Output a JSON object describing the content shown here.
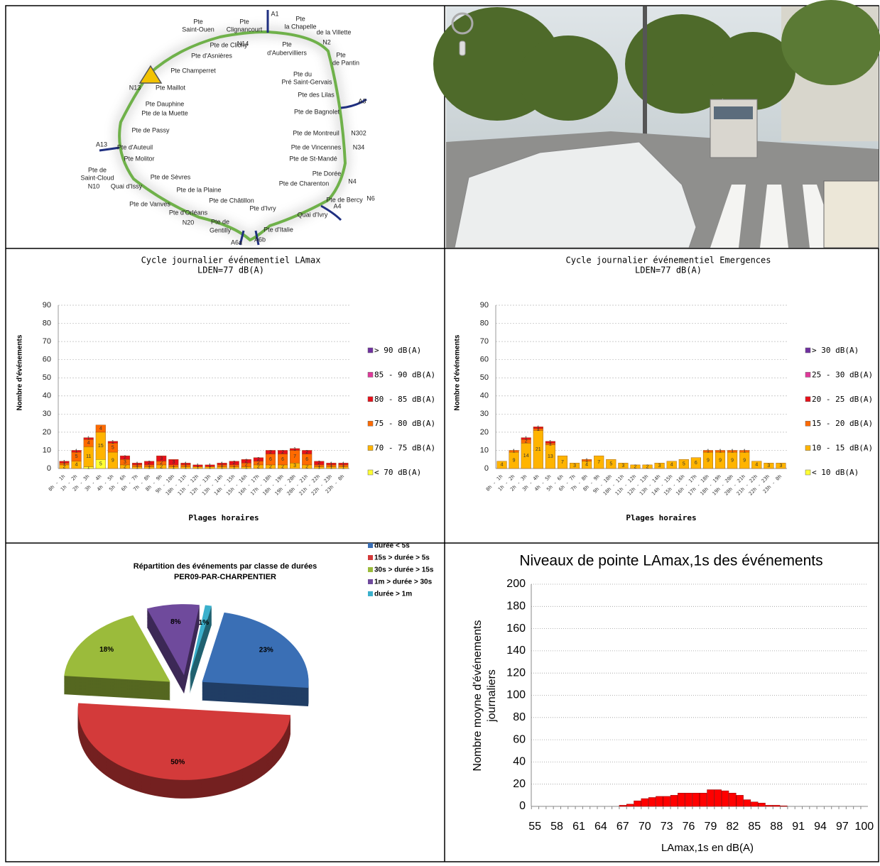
{
  "map": {
    "labels": [
      "Pte",
      "Saint-Ouen",
      "Pte",
      "Clignancourt",
      "A1",
      "Pte",
      "la Chapelle",
      "de la Villette",
      "N14",
      "Pte de Clichy",
      "Pte d'Asnières",
      "N2",
      "Pte",
      "d'Aubervilliers",
      "Pte",
      "de Pantin",
      "Pte Champerret",
      "Pte du",
      "Pré Saint-Gervais",
      "N13",
      "Pte Maillot",
      "Pte des Lilas",
      "A3",
      "Pte Dauphine",
      "Pte de la Muette",
      "Pte de Bagnolet",
      "Pte de Passy",
      "Pte de Montreuil",
      "N302",
      "A13",
      "Pte d'Auteuil",
      "Pte de Vincennes",
      "N34",
      "Pte Molitor",
      "Pte de St-Mandé",
      "Pte de",
      "Saint-Cloud",
      "Pte de Sèvres",
      "Pte Dorée",
      "N10",
      "Quai d'Issy",
      "Pte de Charenton",
      "N4",
      "Pte de la Plaine",
      "Pte de Châtillon",
      "Pte de Bercy",
      "N6",
      "A4",
      "Pte de Vanves",
      "Pte d'Ivry",
      "Pte d'Orléans",
      "Quai d'Ivry",
      "N20",
      "Pte de",
      "Gentilly",
      "Pte d'Italie",
      "A6a",
      "A6b"
    ]
  },
  "chart_data": [
    {
      "type": "stacked_bar",
      "title": "Cycle journalier événementiel LAmax",
      "subtitle": "LDEN=77 dB(A)",
      "ylabel": "Nombre d'événements",
      "xlabel": "Plages horaires",
      "categories": [
        "0h - 1h",
        "1h - 2h",
        "2h - 3h",
        "3h - 4h",
        "4h - 5h",
        "5h - 6h",
        "6h - 7h",
        "7h - 8h",
        "8h - 9h",
        "9h - 10h",
        "10h - 11h",
        "11h - 12h",
        "12h - 13h",
        "13h - 14h",
        "14h - 15h",
        "15h - 16h",
        "16h - 17h",
        "17h - 18h",
        "18h - 19h",
        "19h - 20h",
        "20h - 21h",
        "21h - 22h",
        "22h - 23h",
        "23h - 0h"
      ],
      "series": [
        {
          "name": "< 70 dB(A)",
          "color": "#ffff33",
          "values": [
            0,
            0,
            1,
            5,
            0,
            0,
            0,
            0,
            0,
            0,
            0,
            0,
            0,
            0,
            0,
            0,
            0,
            0,
            0,
            0,
            0,
            0,
            0,
            0
          ]
        },
        {
          "name": "70 - 75 dB(A)",
          "color": "#ffb400",
          "values": [
            2,
            4,
            11,
            15,
            9,
            2,
            1,
            1,
            2,
            1,
            1,
            1,
            1,
            1,
            1,
            1,
            2,
            2,
            2,
            3,
            2,
            1,
            1,
            1
          ]
        },
        {
          "name": "75 - 80 dB(A)",
          "color": "#ff6a00",
          "values": [
            1,
            5,
            4,
            4,
            5,
            3,
            1,
            1,
            2,
            1,
            1,
            0,
            0,
            1,
            1,
            2,
            2,
            6,
            6,
            7,
            6,
            1,
            1,
            1
          ]
        },
        {
          "name": "80 - 85 dB(A)",
          "color": "#e8101a",
          "values": [
            1,
            1,
            1,
            0,
            1,
            2,
            1,
            2,
            3,
            3,
            1,
            1,
            1,
            1,
            2,
            2,
            2,
            2,
            2,
            1,
            2,
            2,
            1,
            1
          ]
        },
        {
          "name": "85 - 90 dB(A)",
          "color": "#e0389a",
          "values": [
            0,
            0,
            0,
            0,
            0,
            0,
            0,
            0,
            0,
            0,
            0,
            0,
            0,
            0,
            0,
            0,
            0,
            0,
            0,
            0,
            0,
            0,
            0,
            0
          ]
        },
        {
          "name": "> 90 dB(A)",
          "color": "#7030a0",
          "values": [
            0,
            0,
            0,
            0,
            0,
            0,
            0,
            0,
            0,
            0,
            0,
            0,
            0,
            0,
            0,
            0,
            0,
            0,
            0,
            0,
            0,
            0,
            0,
            0
          ]
        }
      ],
      "ylim": [
        0,
        90
      ],
      "yticks": [
        0,
        10,
        20,
        30,
        40,
        50,
        60,
        70,
        80,
        90
      ],
      "grid": true
    },
    {
      "type": "stacked_bar",
      "title": "Cycle journalier événementiel Emergences",
      "subtitle": "LDEN=77 dB(A)",
      "ylabel": "Nombre d'événements",
      "xlabel": "Plages horaires",
      "categories": [
        "0h - 1h",
        "1h - 2h",
        "2h - 3h",
        "3h - 4h",
        "4h - 5h",
        "5h - 6h",
        "6h - 7h",
        "7h - 8h",
        "8h - 9h",
        "9h - 10h",
        "10h - 11h",
        "11h - 12h",
        "12h - 13h",
        "13h - 14h",
        "14h - 15h",
        "15h - 16h",
        "16h - 17h",
        "17h - 18h",
        "18h - 19h",
        "19h - 20h",
        "20h - 21h",
        "21h - 22h",
        "22h - 23h",
        "23h - 0h"
      ],
      "series": [
        {
          "name": "< 10 dB(A)",
          "color": "#ffff33",
          "values": [
            0,
            0,
            0,
            0,
            0,
            0,
            0,
            0,
            0,
            0,
            0,
            0,
            0,
            0,
            0,
            0,
            0,
            0,
            0,
            0,
            0,
            0,
            0,
            0
          ]
        },
        {
          "name": "10 - 15 dB(A)",
          "color": "#ffb400",
          "values": [
            4,
            9,
            14,
            21,
            13,
            7,
            3,
            4,
            7,
            5,
            3,
            2,
            2,
            3,
            4,
            5,
            6,
            9,
            9,
            9,
            9,
            4,
            3,
            3
          ]
        },
        {
          "name": "15 - 20 dB(A)",
          "color": "#ff6a00",
          "values": [
            0,
            1,
            2,
            1,
            1,
            0,
            0,
            1,
            0,
            0,
            0,
            0,
            0,
            0,
            0,
            0,
            0,
            1,
            1,
            1,
            1,
            0,
            0,
            0
          ]
        },
        {
          "name": "20 - 25 dB(A)",
          "color": "#e8101a",
          "values": [
            0,
            0,
            1,
            1,
            1,
            0,
            0,
            0,
            0,
            0,
            0,
            0,
            0,
            0,
            0,
            0,
            0,
            0,
            0,
            0,
            0,
            0,
            0,
            0
          ]
        },
        {
          "name": "25 - 30 dB(A)",
          "color": "#e0389a",
          "values": [
            0,
            0,
            0,
            0,
            0,
            0,
            0,
            0,
            0,
            0,
            0,
            0,
            0,
            0,
            0,
            0,
            0,
            0,
            0,
            0,
            0,
            0,
            0,
            0
          ]
        },
        {
          "name": "> 30 dB(A)",
          "color": "#7030a0",
          "values": [
            0,
            0,
            0,
            0,
            0,
            0,
            0,
            0,
            0,
            0,
            0,
            0,
            0,
            0,
            0,
            0,
            0,
            0,
            0,
            0,
            0,
            0,
            0,
            0
          ]
        }
      ],
      "ylim": [
        0,
        90
      ],
      "yticks": [
        0,
        10,
        20,
        30,
        40,
        50,
        60,
        70,
        80,
        90
      ],
      "grid": true
    },
    {
      "type": "pie",
      "title": "Répartition des événements par classe de durées",
      "subtitle": "PER09-PAR-CHARPENTIER",
      "categories": [
        "durée < 5s",
        "15s > durée > 5s",
        "30s > durée > 15s",
        "1m > durée > 30s",
        "durée > 1m"
      ],
      "values": [
        23,
        50,
        18,
        8,
        1
      ],
      "value_labels": [
        "23%",
        "50%",
        "18%",
        "8%",
        "1%"
      ],
      "colors": [
        "#3a6fb5",
        "#d33a3a",
        "#9bbb3b",
        "#6f4a9c",
        "#3bb0cc"
      ]
    },
    {
      "type": "bar",
      "title": "Niveaux de pointe LAmax,1s des événements",
      "ylabel": [
        "Nombre moyne d'événements",
        "journaliers"
      ],
      "xlabel": "LAmax,1s en dB(A)",
      "x": [
        55,
        56,
        57,
        58,
        59,
        60,
        61,
        62,
        63,
        64,
        65,
        66,
        67,
        68,
        69,
        70,
        71,
        72,
        73,
        74,
        75,
        76,
        77,
        78,
        79,
        80,
        81,
        82,
        83,
        84,
        85,
        86,
        87,
        88,
        89,
        90,
        91,
        92,
        93,
        94,
        95,
        96,
        97,
        98,
        99,
        100
      ],
      "values": [
        0,
        0,
        0,
        0,
        0,
        0,
        0,
        0,
        0,
        0,
        0,
        0,
        1,
        2,
        5,
        7,
        8,
        9,
        9,
        10,
        12,
        12,
        12,
        12,
        15,
        15,
        14,
        12,
        10,
        6,
        4,
        3,
        1,
        1,
        0.5,
        0,
        0,
        0,
        0,
        0,
        0,
        0,
        0,
        0,
        0,
        0
      ],
      "color": "#ff0000",
      "xlim": [
        54.5,
        100.5
      ],
      "xticks": [
        55,
        58,
        61,
        64,
        67,
        70,
        73,
        76,
        79,
        82,
        85,
        88,
        91,
        94,
        97,
        100
      ],
      "ylim": [
        0,
        200
      ],
      "yticks": [
        0,
        20,
        40,
        60,
        80,
        100,
        120,
        140,
        160,
        180,
        200
      ],
      "grid": true
    }
  ]
}
